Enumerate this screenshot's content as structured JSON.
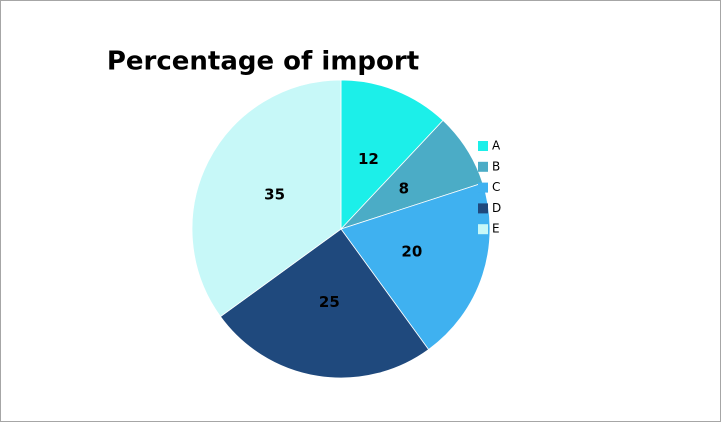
{
  "chart_data": {
    "type": "pie",
    "title": "Percentage of import",
    "categories": [
      "A",
      "B",
      "C",
      "D",
      "E"
    ],
    "values": [
      12,
      8,
      20,
      25,
      35
    ],
    "colors": [
      "#1cefe9",
      "#4bacc6",
      "#3fb1f0",
      "#1f497d",
      "#c7f8f8"
    ],
    "legend": "right"
  }
}
